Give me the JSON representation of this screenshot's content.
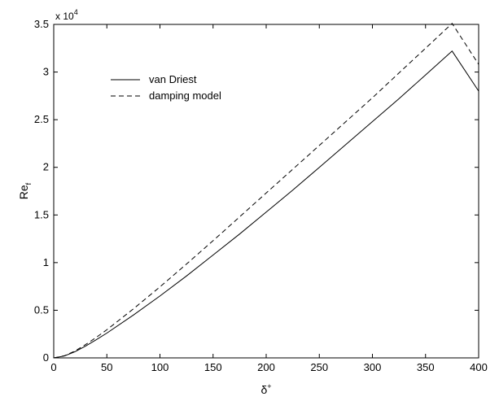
{
  "chart_data": {
    "type": "line",
    "title": "",
    "xlabel": "δ",
    "xlabel_superscript": "+",
    "ylabel": "Re",
    "ylabel_subscript": "f",
    "y_multiplier_base": "x 10",
    "y_multiplier_exponent": "4",
    "xlim": [
      0,
      400
    ],
    "ylim": [
      0,
      35000
    ],
    "x_ticks": [
      0,
      50,
      100,
      150,
      200,
      250,
      300,
      350,
      400
    ],
    "x_tick_labels": [
      "0",
      "50",
      "100",
      "150",
      "200",
      "250",
      "300",
      "350",
      "400"
    ],
    "y_ticks": [
      0,
      5000,
      10000,
      15000,
      20000,
      25000,
      30000,
      35000
    ],
    "y_tick_labels": [
      "0",
      "0.5",
      "1",
      "1.5",
      "2",
      "2.5",
      "3",
      "3.5"
    ],
    "grid": false,
    "legend_position": "upper-left",
    "series": [
      {
        "name": "van Driest",
        "line_style": "solid",
        "color": "#000000",
        "x": [
          0,
          10,
          20,
          30,
          40,
          50,
          75,
          100,
          125,
          150,
          175,
          200,
          225,
          250,
          275,
          300,
          325,
          350,
          375,
          400
        ],
        "y": [
          0,
          200,
          650,
          1250,
          1900,
          2600,
          4500,
          6500,
          8600,
          10800,
          13000,
          15300,
          17600,
          20000,
          22400,
          24800,
          27200,
          29700,
          32200,
          28000
        ]
      },
      {
        "name": "damping model",
        "line_style": "dashed",
        "color": "#000000",
        "x": [
          0,
          10,
          20,
          30,
          40,
          50,
          75,
          100,
          125,
          150,
          175,
          200,
          225,
          250,
          275,
          300,
          325,
          350,
          375,
          400
        ],
        "y": [
          0,
          220,
          720,
          1400,
          2150,
          2950,
          5150,
          7450,
          9850,
          12300,
          14800,
          17300,
          19800,
          22300,
          24800,
          27300,
          29900,
          32500,
          35100,
          30800
        ]
      }
    ]
  }
}
